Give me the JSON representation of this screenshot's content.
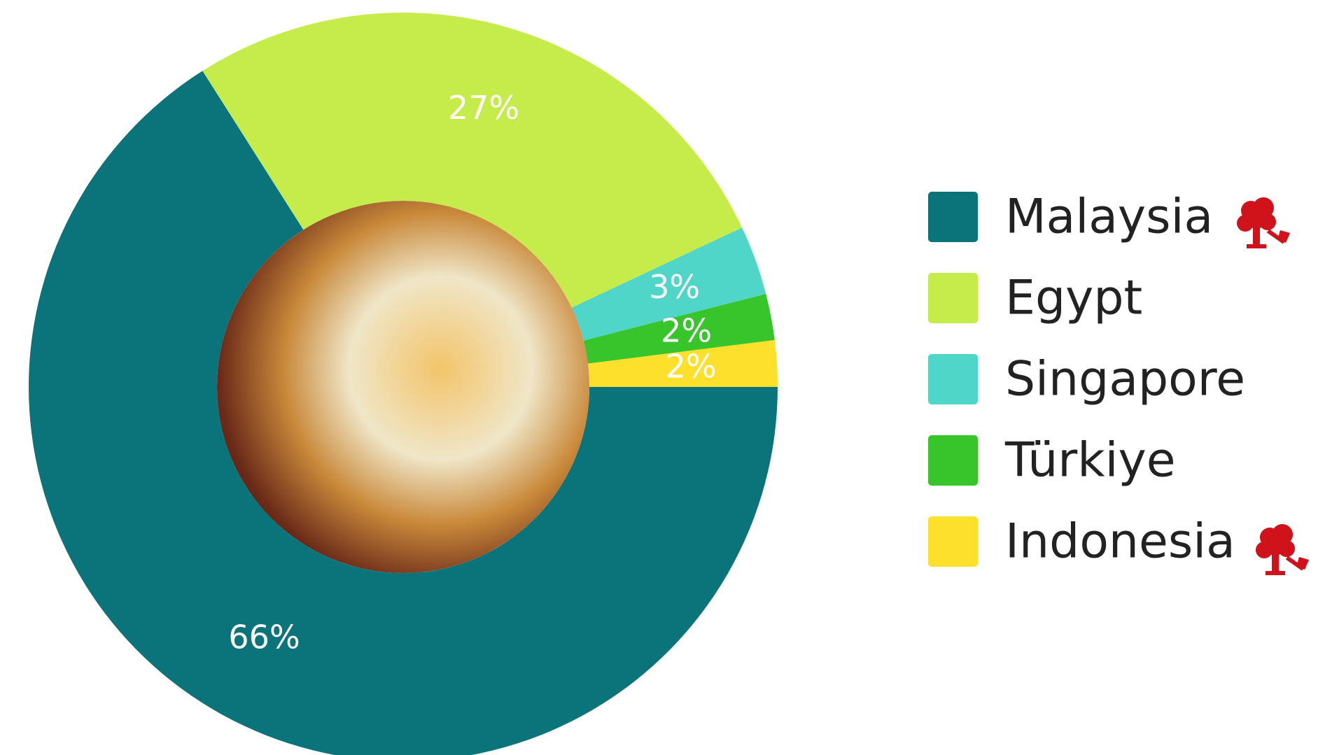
{
  "chart_data": {
    "type": "donut",
    "categories": [
      "Malaysia",
      "Egypt",
      "Singapore",
      "Türkiye",
      "Indonesia"
    ],
    "values": [
      66,
      27,
      3,
      2,
      2
    ],
    "value_labels": [
      "66%",
      "27%",
      "3%",
      "2%",
      "2%"
    ],
    "colors": [
      "#0b737a",
      "#c6ec4c",
      "#50d6c8",
      "#38c52c",
      "#fde02b"
    ],
    "legend": "right"
  }
}
